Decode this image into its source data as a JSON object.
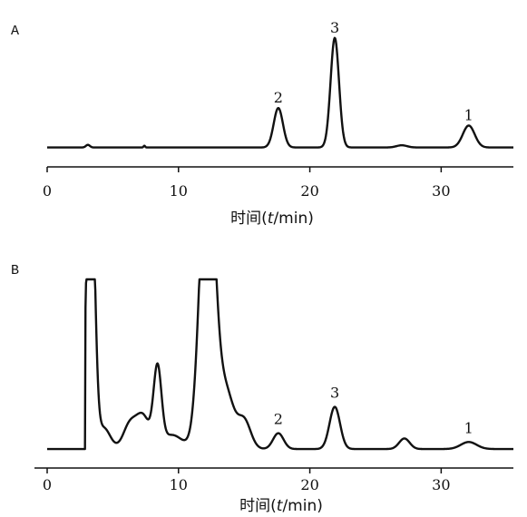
{
  "chart_data": [
    {
      "type": "line",
      "panel_label": "A",
      "xlabel_prefix": "时间(",
      "xlabel_var": "t",
      "xlabel_suffix": "/min)",
      "xlim": [
        0,
        35.5
      ],
      "xticks": [
        0,
        10,
        20,
        30
      ],
      "baseline": 0.05,
      "peaks": [
        {
          "label": "2",
          "t": 17.6,
          "height": 0.9,
          "width": 0.35
        },
        {
          "label": "3",
          "t": 21.9,
          "height": 2.5,
          "width": 0.32
        },
        {
          "label": "1",
          "t": 32.1,
          "height": 0.5,
          "width": 0.45
        }
      ],
      "minor_peaks": [
        {
          "t": 3.1,
          "height": 0.06,
          "width": 0.15
        },
        {
          "t": 7.4,
          "height": 0.04,
          "width": 0.06
        },
        {
          "t": 27.0,
          "height": 0.05,
          "width": 0.4
        }
      ],
      "ylim": [
        0,
        3.0
      ]
    },
    {
      "type": "line",
      "panel_label": "B",
      "xlabel_prefix": "时间(",
      "xlabel_var": "t",
      "xlabel_suffix": "/min)",
      "xlim": [
        0,
        35.5
      ],
      "xticks": [
        0,
        10,
        20,
        30
      ],
      "baseline": 0.05,
      "peaks": [
        {
          "label": "2",
          "t": 17.6,
          "height": 0.45,
          "width": 0.4
        },
        {
          "label": "3",
          "t": 21.9,
          "height": 1.2,
          "width": 0.4
        },
        {
          "label": "1",
          "t": 32.1,
          "height": 0.2,
          "width": 0.6
        }
      ],
      "minor_peaks": [
        {
          "t": 3.3,
          "height": 9.0,
          "width": 0.3
        },
        {
          "t": 4.3,
          "height": 0.6,
          "width": 0.5
        },
        {
          "t": 6.3,
          "height": 0.7,
          "width": 0.5
        },
        {
          "t": 7.3,
          "height": 0.9,
          "width": 0.5
        },
        {
          "t": 8.4,
          "height": 2.2,
          "width": 0.3
        },
        {
          "t": 9.5,
          "height": 0.4,
          "width": 0.8
        },
        {
          "t": 12.2,
          "height": 9.0,
          "width": 0.55
        },
        {
          "t": 13.6,
          "height": 1.6,
          "width": 0.6
        },
        {
          "t": 15.0,
          "height": 0.8,
          "width": 0.5
        },
        {
          "t": 27.2,
          "height": 0.3,
          "width": 0.4
        }
      ],
      "ylim": [
        0,
        6.5
      ]
    }
  ]
}
